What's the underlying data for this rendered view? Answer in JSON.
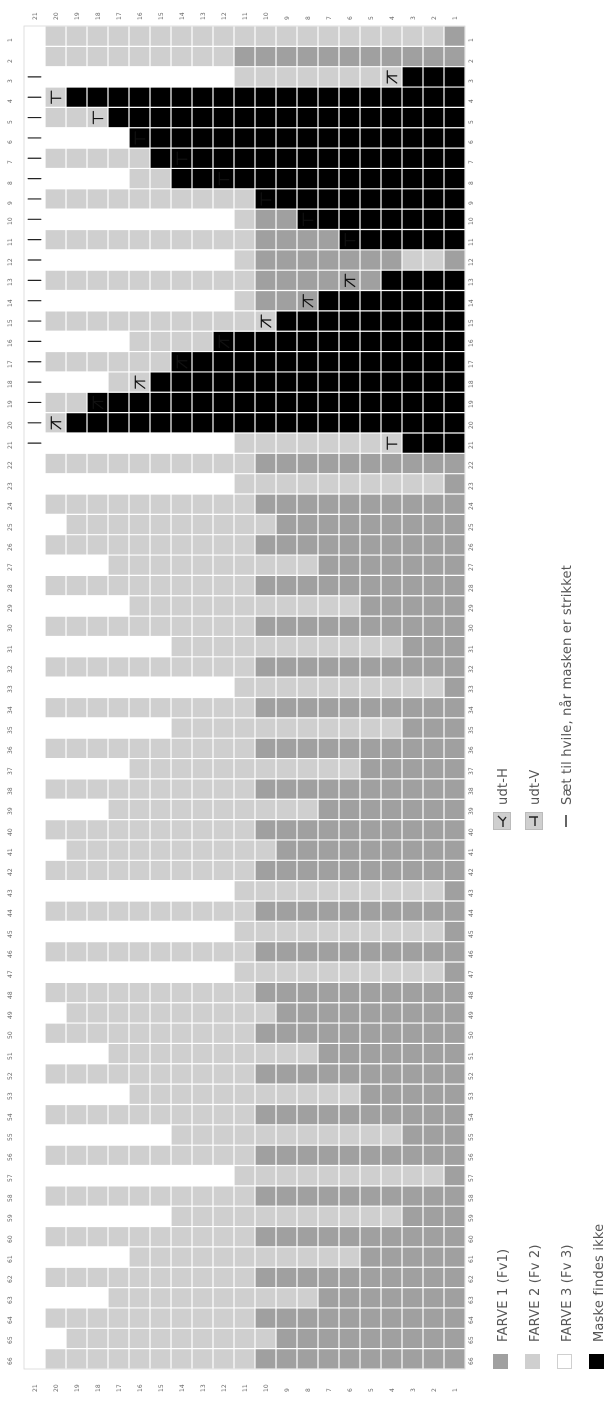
{
  "colors": {
    "fv1": "#a0a0a0",
    "fv2": "#cfcfcf",
    "fv3": "#ffffff",
    "none": "#000000"
  },
  "chart_data": {
    "type": "knitting-chart",
    "rows": 66,
    "stitches": 21,
    "row_labels": [
      "1",
      "2",
      "3",
      "4",
      "5",
      "6",
      "7",
      "8",
      "9",
      "10",
      "11",
      "12",
      "13",
      "14",
      "15",
      "16",
      "17",
      "18",
      "19",
      "20",
      "21",
      "22",
      "23",
      "24",
      "25",
      "26",
      "27",
      "28",
      "29",
      "30",
      "31",
      "32",
      "33",
      "34",
      "35",
      "36",
      "37",
      "38",
      "39",
      "40",
      "41",
      "42",
      "43",
      "44",
      "45",
      "46",
      "47",
      "48",
      "49",
      "50",
      "51",
      "52",
      "53",
      "54",
      "55",
      "56",
      "57",
      "58",
      "59",
      "60",
      "61",
      "62",
      "63",
      "64",
      "65",
      "66"
    ],
    "stitch_labels": [
      "1",
      "2",
      "3",
      "4",
      "5",
      "6",
      "7",
      "8",
      "9",
      "10",
      "11",
      "12",
      "13",
      "14",
      "15",
      "16",
      "17",
      "18",
      "19",
      "20",
      "21"
    ],
    "cell_codes": "D = FARVE 1, L = FARVE 2, W = FARVE 3, B = Maske findes ikke; one string per row (row 1 first), stitch 21 first, stitch 1 last",
    "grid": [
      "WLLLLLLLLLLLLLLLLLLLD",
      "WLLLLLLLLLDDDDDDDDDDD",
      "WWWWWWWWWWLLLLLLLLBBB",
      "WLBBBBBBBBBBBBBBBBBBB",
      "WLLLBBBBBBBBBBBBBBBBB",
      "WWWWWBBBBBBBBBBBBBBBB",
      "WLLLLLBBBBBBBBBBBBBBB",
      "WWWWWLLBBBBBBBBBBBBBB",
      "WLLLLLLLLLLBBBBBBBBBB",
      "WWWWWWWWWWLDDBBBBBBBB",
      "WLLLLLLLLLLDDDDBBBBBB",
      "WWWWWWWWWWLDDDDDDDLLD",
      "WLLLLLLLLLLDDDDDDBBBB",
      "WWWWWWWWWWLDDDBBBBBBB",
      "WLLLLLLLLLLLBBBBBBBBB",
      "WWWWWLLLLBBBBBBBBBBBB",
      "WLLLLLLBBBBBBBBBBBBBB",
      "WWWWLLBBBBBBBBBBBBBBB",
      "WLLBBBBBBBBBBBBBBBBBB",
      "WLBBBBBBBBBBBBBBBBBBB",
      "WWWWWWWWWWLLLLLLLLBBB",
      "WLLLLLLLLLLDDDDDDDDDD",
      "WWWWWWWWWWLLLLLLLLLLD",
      "WLLLLLLLLLLDDDDDDDDDD",
      "WWLLLLLLLLLLDDDDDDDDD",
      "WLLLLLLLLLLDDDDDDDDDD",
      "WWWWLLLLLLLLLLDDDDDDD",
      "WLLLLLLLLLLDDDDDDDDDD",
      "WWWWWLLLLLLLLLLLDDDDD",
      "WLLLLLLLLLLDDDDDDDDDD",
      "WWWWWWWLLLLLLLLLLLDDD",
      "WLLLLLLLLLLDDDDDDDDDD",
      "WWWWWWWWWWLLLLLLLLLLD",
      "WLLLLLLLLLLDDDDDDDDDD",
      "WWWWWWWLLLLLLLLLLLDDD",
      "WLLLLLLLLLLDDDDDDDDDD",
      "WWWWWLLLLLLLLLLLDDDDD",
      "WLLLLLLLLLLDDDDDDDDDD",
      "WWWWLLLLLLLLLLDDDDDDD",
      "WLLLLLLLLLLDDDDDDDDDD",
      "WWLLLLLLLLLLDDDDDDDDD",
      "WLLLLLLLLLLDDDDDDDDDD",
      "WWWWWWWWWWLLLLLLLLLLD",
      "WLLLLLLLLLLDDDDDDDDDD",
      "WWWWWWWWWWLLLLLLLLLLD",
      "WLLLLLLLLLLDDDDDDDDDD",
      "WWWWWWWWWWLLLLLLLLLLD",
      "WLLLLLLLLLLDDDDDDDDDD",
      "WWLLLLLLLLLLDDDDDDDDD",
      "WLLLLLLLLLLDDDDDDDDDD",
      "WWWWLLLLLLLLLLDDDDDDD",
      "WLLLLLLLLLLDDDDDDDDDD",
      "WWWWWLLLLLLLLLLLDDDDD",
      "WLLLLLLLLLLDDDDDDDDDD",
      "WWWWWWWLLLLLLLLLLLDDD",
      "WLLLLLLLLLLDDDDDDDDDD",
      "WWWWWWWWWWLLLLLLLLLLD",
      "WLLLLLLLLLLDDDDDDDDDD",
      "WWWWWWWLLLLLLLLLLLDDD",
      "WLLLLLLLLLLDDDDDDDDDD",
      "WWWWWLLLLLLLLLLLDDDDD",
      "WLLLLLLLLLLDDDDDDDDDD",
      "WWWWLLLLLLLLLLDDDDDDD",
      "WLLLLLLLLLLDDDDDDDDDD",
      "WWLLLLLLLLLLDDDDDDDDD",
      "WLLLLLLLLLLDDDDDDDDDD"
    ],
    "symbols": [
      {
        "row": 3,
        "stitch": 21,
        "type": "rest"
      },
      {
        "row": 3,
        "stitch": 4,
        "type": "udt-H"
      },
      {
        "row": 4,
        "stitch": 21,
        "type": "rest"
      },
      {
        "row": 4,
        "stitch": 20,
        "type": "udt-V"
      },
      {
        "row": 5,
        "stitch": 21,
        "type": "rest"
      },
      {
        "row": 5,
        "stitch": 18,
        "type": "udt-V"
      },
      {
        "row": 6,
        "stitch": 21,
        "type": "rest"
      },
      {
        "row": 6,
        "stitch": 16,
        "type": "udt-V"
      },
      {
        "row": 7,
        "stitch": 21,
        "type": "rest"
      },
      {
        "row": 7,
        "stitch": 14,
        "type": "udt-V"
      },
      {
        "row": 8,
        "stitch": 21,
        "type": "rest"
      },
      {
        "row": 8,
        "stitch": 12,
        "type": "udt-V"
      },
      {
        "row": 9,
        "stitch": 21,
        "type": "rest"
      },
      {
        "row": 9,
        "stitch": 10,
        "type": "udt-V"
      },
      {
        "row": 10,
        "stitch": 21,
        "type": "rest"
      },
      {
        "row": 10,
        "stitch": 8,
        "type": "udt-V"
      },
      {
        "row": 11,
        "stitch": 21,
        "type": "rest"
      },
      {
        "row": 11,
        "stitch": 6,
        "type": "udt-V"
      },
      {
        "row": 12,
        "stitch": 21,
        "type": "rest"
      },
      {
        "row": 13,
        "stitch": 21,
        "type": "rest"
      },
      {
        "row": 13,
        "stitch": 6,
        "type": "udt-H"
      },
      {
        "row": 14,
        "stitch": 21,
        "type": "rest"
      },
      {
        "row": 14,
        "stitch": 8,
        "type": "udt-H"
      },
      {
        "row": 15,
        "stitch": 21,
        "type": "rest"
      },
      {
        "row": 15,
        "stitch": 10,
        "type": "udt-H"
      },
      {
        "row": 16,
        "stitch": 21,
        "type": "rest"
      },
      {
        "row": 16,
        "stitch": 12,
        "type": "udt-H"
      },
      {
        "row": 17,
        "stitch": 21,
        "type": "rest"
      },
      {
        "row": 17,
        "stitch": 14,
        "type": "udt-H"
      },
      {
        "row": 18,
        "stitch": 21,
        "type": "rest"
      },
      {
        "row": 18,
        "stitch": 16,
        "type": "udt-H"
      },
      {
        "row": 19,
        "stitch": 21,
        "type": "rest"
      },
      {
        "row": 19,
        "stitch": 18,
        "type": "udt-H"
      },
      {
        "row": 20,
        "stitch": 21,
        "type": "rest"
      },
      {
        "row": 20,
        "stitch": 20,
        "type": "udt-H"
      },
      {
        "row": 21,
        "stitch": 21,
        "type": "rest"
      },
      {
        "row": 21,
        "stitch": 4,
        "type": "udt-V"
      }
    ]
  },
  "legend": {
    "colors": [
      {
        "key": "fv1",
        "label": "FARVE 1  (Fv1)"
      },
      {
        "key": "fv2",
        "label": "FARVE 2 (Fv 2)"
      },
      {
        "key": "fv3",
        "label": "FARVE 3 (Fv 3)"
      },
      {
        "key": "none",
        "label": "Maske findes ikke"
      }
    ],
    "symbols": [
      {
        "type": "udt-H",
        "label": "udt-H"
      },
      {
        "type": "udt-V",
        "label": "udt-V"
      },
      {
        "type": "rest",
        "label": "Sæt til hvile, når masken er strikket"
      }
    ]
  }
}
